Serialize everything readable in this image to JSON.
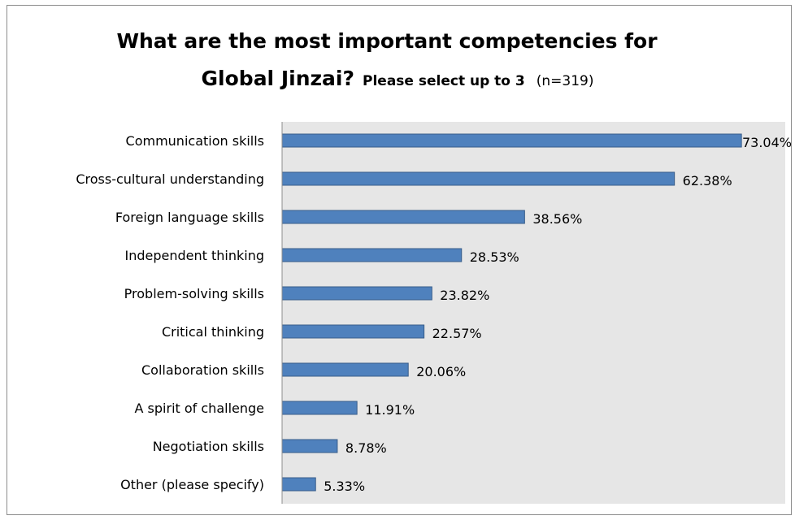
{
  "chart_data": {
    "type": "bar",
    "orientation": "horizontal",
    "title_line1": "What are the most important competencies for",
    "title_line2_main": "Global Jinzai?",
    "title_line2_sub": "Please select up to 3",
    "title_line2_n": "(n=319)",
    "categories": [
      "Communication skills",
      "Cross-cultural understanding",
      "Foreign language skills",
      "Independent thinking",
      "Problem-solving skills",
      "Critical thinking",
      "Collaboration skills",
      "A spirit of challenge",
      "Negotiation skills",
      "Other (please specify)"
    ],
    "values": [
      73.04,
      62.38,
      38.56,
      28.53,
      23.82,
      22.57,
      20.06,
      11.91,
      8.78,
      5.33
    ],
    "value_labels": [
      "73.04%",
      "62.38%",
      "38.56%",
      "28.53%",
      "23.82%",
      "22.57%",
      "20.06%",
      "11.91%",
      "8.78%",
      "5.33%"
    ],
    "xlim": [
      0,
      80
    ],
    "grid": false,
    "legend": "none",
    "colors": {
      "bar_fill": "#4f81bd",
      "bar_stroke": "#385d8a",
      "plot_background": "#e6e6e6",
      "axis": "#8c8c8c"
    }
  }
}
